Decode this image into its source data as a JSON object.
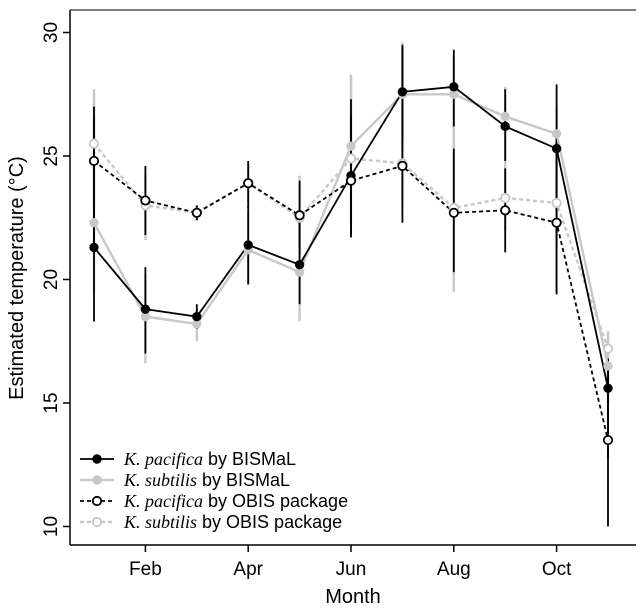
{
  "chart_data": {
    "type": "line",
    "xlabel": "Month",
    "ylabel": "Estimated temperature (°C)",
    "ylim": [
      10,
      30
    ],
    "yticks": [
      10,
      15,
      20,
      25,
      30
    ],
    "x_tick_labels": [
      {
        "month": 2,
        "label": "Feb"
      },
      {
        "month": 4,
        "label": "Apr"
      },
      {
        "month": 6,
        "label": "Jun"
      },
      {
        "month": 8,
        "label": "Aug"
      },
      {
        "month": 10,
        "label": "Oct"
      }
    ],
    "xlim": [
      0.5,
      11.1
    ],
    "grid": false,
    "legend_position": "bottom-left",
    "series": [
      {
        "name_species": "K. pacifica",
        "name_suffix": " by BISMaL",
        "color": "#000000",
        "line_style": "solid",
        "marker": "filled",
        "x": [
          1,
          2,
          3,
          4,
          5,
          6,
          7,
          8,
          9,
          10,
          11
        ],
        "y": [
          21.3,
          18.8,
          18.5,
          21.4,
          20.6,
          24.2,
          27.6,
          27.8,
          26.2,
          25.3,
          15.6
        ],
        "err_low": [
          18.3,
          17.0,
          18.0,
          19.8,
          19.0,
          21.8,
          25.6,
          26.2,
          24.8,
          19.5,
          12.8
        ],
        "err_high": [
          27.0,
          20.5,
          19.0,
          23.0,
          22.5,
          27.3,
          29.5,
          29.3,
          27.7,
          27.9,
          16.8
        ]
      },
      {
        "name_species": "K. subtilis",
        "name_suffix": " by BISMaL",
        "color": "#c8c8c8",
        "line_style": "solid",
        "marker": "filled",
        "x": [
          1,
          2,
          3,
          4,
          5,
          6,
          7,
          8,
          9,
          10,
          11
        ],
        "y": [
          22.3,
          18.5,
          18.2,
          21.2,
          20.3,
          25.4,
          27.5,
          27.5,
          26.6,
          25.9,
          16.5
        ],
        "err_low": [
          19.5,
          16.6,
          17.5,
          19.8,
          18.3,
          23.5,
          24.0,
          25.7,
          24.5,
          22.7,
          15.0
        ],
        "err_high": [
          27.5,
          20.2,
          18.8,
          22.7,
          22.5,
          28.2,
          29.4,
          29.0,
          27.8,
          27.0,
          17.9
        ]
      },
      {
        "name_species": "K. pacifica",
        "name_suffix": " by OBIS package",
        "color": "#000000",
        "line_style": "dashed",
        "marker": "open",
        "x": [
          1,
          2,
          3,
          4,
          5,
          6,
          7,
          8,
          9,
          10,
          11
        ],
        "y": [
          24.8,
          23.2,
          22.7,
          23.9,
          22.6,
          24.0,
          24.6,
          22.7,
          22.8,
          22.3,
          13.5
        ],
        "err_low": [
          21.5,
          21.8,
          22.4,
          22.9,
          21.3,
          21.7,
          22.3,
          20.3,
          21.1,
          19.4,
          10.0
        ],
        "err_high": [
          26.5,
          24.6,
          23.0,
          24.8,
          24.0,
          26.6,
          29.3,
          25.3,
          24.5,
          26.0,
          16.8
        ]
      },
      {
        "name_species": "K. subtilis",
        "name_suffix": " by OBIS package",
        "color": "#c8c8c8",
        "line_style": "dashed",
        "marker": "open",
        "x": [
          1,
          2,
          3,
          4,
          5,
          6,
          7,
          8,
          9,
          10,
          11
        ],
        "y": [
          25.5,
          23.0,
          22.7,
          23.9,
          22.5,
          24.9,
          24.7,
          22.9,
          23.3,
          23.1,
          17.2
        ],
        "err_low": [
          23.0,
          21.6,
          22.4,
          23.1,
          21.0,
          22.2,
          23.0,
          19.5,
          22.0,
          21.3,
          15.8
        ],
        "err_high": [
          27.7,
          24.3,
          23.0,
          24.7,
          24.2,
          28.3,
          29.6,
          26.3,
          24.6,
          26.8,
          17.9
        ]
      }
    ]
  }
}
